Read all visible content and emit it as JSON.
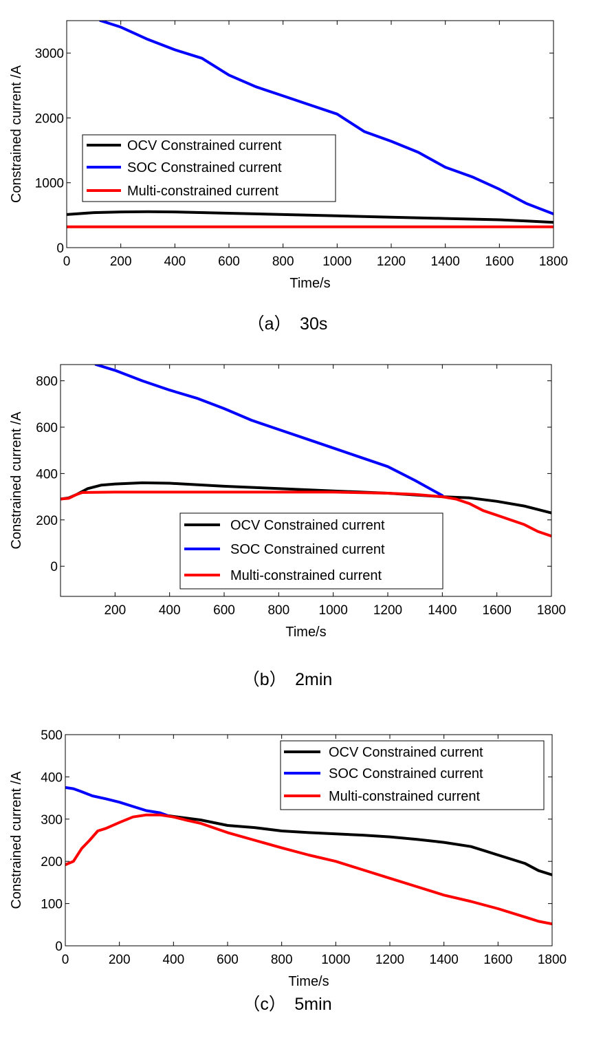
{
  "chart_data": [
    {
      "type": "line",
      "caption": "（a）　30s",
      "xlabel": "Time/s",
      "ylabel": "Constrained current /A",
      "xlim": [
        0,
        1800
      ],
      "ylim": [
        0,
        3500
      ],
      "xticks": [
        0,
        200,
        400,
        600,
        800,
        1000,
        1200,
        1400,
        1600,
        1800
      ],
      "yticks": [
        0,
        1000,
        2000,
        3000
      ],
      "legend": "upper-left",
      "series": [
        {
          "name": "OCV Constrained current",
          "color": "#000000",
          "x": [
            0,
            100,
            200,
            300,
            400,
            600,
            800,
            1000,
            1200,
            1400,
            1600,
            1700,
            1800
          ],
          "y": [
            510,
            540,
            550,
            555,
            550,
            530,
            510,
            490,
            470,
            450,
            430,
            410,
            390
          ]
        },
        {
          "name": "SOC Constrained current",
          "color": "#0000ff",
          "x": [
            125,
            200,
            300,
            400,
            500,
            600,
            700,
            800,
            900,
            1000,
            1100,
            1200,
            1300,
            1400,
            1500,
            1600,
            1700,
            1800
          ],
          "y": [
            3500,
            3400,
            3210,
            3050,
            2920,
            2660,
            2480,
            2340,
            2200,
            2060,
            1790,
            1640,
            1470,
            1240,
            1090,
            900,
            680,
            520
          ]
        },
        {
          "name": "Multi-constrained current",
          "color": "#ff0000",
          "x": [
            0,
            1800
          ],
          "y": [
            320,
            320
          ]
        }
      ]
    },
    {
      "type": "line",
      "caption": "（b）　2min",
      "xlabel": "Time/s",
      "ylabel": "Constrained current /A",
      "xlim": [
        0,
        1800
      ],
      "ylim": [
        -130,
        870
      ],
      "xticks": [
        200,
        400,
        600,
        800,
        1000,
        1200,
        1400,
        1600,
        1800
      ],
      "yticks": [
        0,
        200,
        400,
        600,
        800
      ],
      "legend": "lower-center",
      "series": [
        {
          "name": "OCV Constrained current",
          "color": "#000000",
          "x": [
            0,
            30,
            60,
            100,
            150,
            200,
            300,
            400,
            600,
            800,
            1000,
            1200,
            1400,
            1500,
            1600,
            1700,
            1800
          ],
          "y": [
            290,
            295,
            310,
            335,
            350,
            355,
            360,
            358,
            345,
            335,
            325,
            315,
            300,
            295,
            280,
            260,
            230
          ]
        },
        {
          "name": "SOC Constrained current",
          "color": "#0000ff",
          "x": [
            130,
            200,
            300,
            400,
            500,
            600,
            700,
            800,
            900,
            1000,
            1100,
            1200,
            1300,
            1400
          ],
          "y": [
            870,
            845,
            800,
            760,
            725,
            680,
            630,
            590,
            550,
            510,
            470,
            430,
            370,
            305
          ]
        },
        {
          "name": "Multi-constrained current",
          "color": "#ff0000",
          "x": [
            0,
            30,
            60,
            80,
            200,
            400,
            600,
            800,
            1000,
            1200,
            1300,
            1400,
            1450,
            1500,
            1550,
            1600,
            1700,
            1750,
            1800
          ],
          "y": [
            290,
            293,
            310,
            318,
            320,
            320,
            320,
            320,
            320,
            315,
            310,
            300,
            290,
            270,
            240,
            220,
            180,
            150,
            130
          ]
        }
      ]
    },
    {
      "type": "line",
      "caption": "（c）　5min",
      "xlabel": "Time/s",
      "ylabel": "Constrained current /A",
      "xlim": [
        0,
        1800
      ],
      "ylim": [
        0,
        500
      ],
      "xticks": [
        0,
        200,
        400,
        600,
        800,
        1000,
        1200,
        1400,
        1600,
        1800
      ],
      "yticks": [
        0,
        100,
        200,
        300,
        400,
        500
      ],
      "legend": "upper-right",
      "series": [
        {
          "name": "OCV Constrained current",
          "color": "#000000",
          "x": [
            380,
            500,
            600,
            700,
            800,
            900,
            1000,
            1100,
            1200,
            1300,
            1400,
            1500,
            1550,
            1600,
            1650,
            1700,
            1750,
            1800
          ],
          "y": [
            308,
            298,
            285,
            280,
            272,
            268,
            265,
            262,
            258,
            252,
            245,
            235,
            225,
            215,
            205,
            195,
            178,
            168
          ]
        },
        {
          "name": "SOC Constrained current",
          "color": "#0000ff",
          "x": [
            0,
            30,
            60,
            100,
            150,
            200,
            250,
            300,
            350,
            380
          ],
          "y": [
            375,
            372,
            365,
            355,
            348,
            340,
            330,
            320,
            315,
            308
          ]
        },
        {
          "name": "Multi-constrained current",
          "color": "#ff0000",
          "x": [
            0,
            30,
            60,
            90,
            120,
            150,
            200,
            250,
            300,
            350,
            400,
            450,
            500,
            600,
            700,
            800,
            900,
            1000,
            1100,
            1200,
            1300,
            1400,
            1500,
            1600,
            1700,
            1750,
            1800
          ],
          "y": [
            192,
            200,
            230,
            250,
            272,
            278,
            292,
            305,
            310,
            310,
            305,
            297,
            290,
            268,
            250,
            232,
            215,
            200,
            180,
            160,
            140,
            120,
            105,
            88,
            68,
            58,
            52
          ]
        }
      ]
    }
  ]
}
